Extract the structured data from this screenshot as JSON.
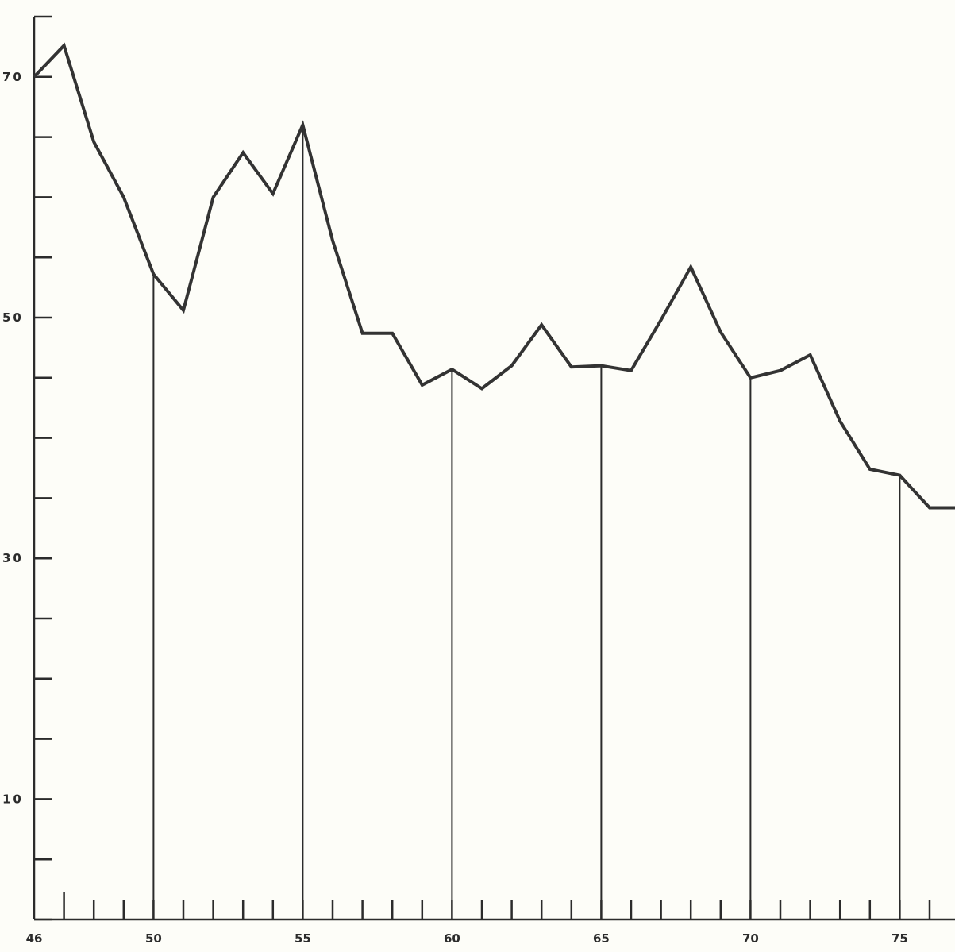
{
  "chart_data": {
    "type": "line",
    "title": "",
    "xlabel": "",
    "ylabel": "",
    "xlim": [
      46,
      77
    ],
    "ylim": [
      0,
      75
    ],
    "x_tick_labels": [
      "46",
      "50",
      "55",
      "60",
      "65",
      "70",
      "75"
    ],
    "y_tick_labels": [
      "10",
      "30",
      "50",
      "70"
    ],
    "grid": false,
    "legend": false,
    "series": [
      {
        "x": [
          46,
          47,
          48,
          49,
          50,
          51,
          52,
          53,
          54,
          55,
          56,
          57,
          58,
          59,
          60,
          61,
          62,
          63,
          64,
          65,
          66,
          67,
          68,
          69,
          70,
          71,
          72,
          73,
          74,
          75,
          76,
          77
        ],
        "values": [
          70,
          72.6,
          64.6,
          60,
          53.6,
          50.6,
          60,
          63.7,
          60.3,
          66,
          56.4,
          48.7,
          48.7,
          44.4,
          45.7,
          44.1,
          46,
          49.4,
          45.9,
          46,
          45.6,
          49.8,
          54.2,
          48.8,
          45,
          45.6,
          46.9,
          41.4,
          37.4,
          36.9,
          34.2,
          34.2
        ]
      }
    ],
    "drop_lines_at": [
      50,
      55,
      60,
      65,
      70,
      75
    ]
  }
}
